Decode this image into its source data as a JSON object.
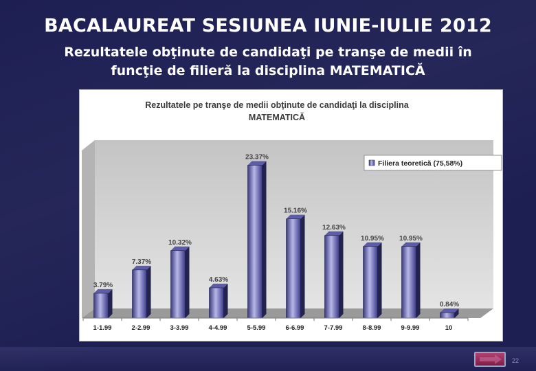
{
  "slide": {
    "title": "BACALAUREAT SESIUNEA IUNIE-IULIE 2012",
    "subtitle_line1": "Rezultatele obţinute de candidaţi pe tranşe de medii în",
    "subtitle_line2": "funcţie de filieră la disciplina MATEMATICĂ",
    "page_number": "22"
  },
  "chart_data": {
    "type": "bar",
    "title_line1": "Rezultatele pe tranşe de medii obţinute de candidaţi la disciplina",
    "title_line2": "MATEMATICĂ",
    "categories": [
      "1-1.99",
      "2-2.99",
      "3-3.99",
      "4-4.99",
      "5-5.99",
      "6-6.99",
      "7-7.99",
      "8-8.99",
      "9-9.99",
      "10"
    ],
    "series": [
      {
        "name": "Filiera teoretică (75,58%)",
        "values": [
          3.79,
          7.37,
          10.32,
          4.63,
          23.37,
          15.16,
          12.63,
          10.95,
          10.95,
          0.84
        ],
        "labels": [
          "3.79%",
          "7.37%",
          "10.32%",
          "4.63%",
          "23.37%",
          "15.16%",
          "12.63%",
          "10.95%",
          "10.95%",
          "0.84%"
        ]
      }
    ],
    "ylim": [
      0,
      25
    ],
    "grid": false,
    "legend_position": "top-right",
    "bar_color": "#4a4a9a",
    "bar_highlight": "#b8b8e8",
    "wall_color": "#d4d4d4"
  }
}
